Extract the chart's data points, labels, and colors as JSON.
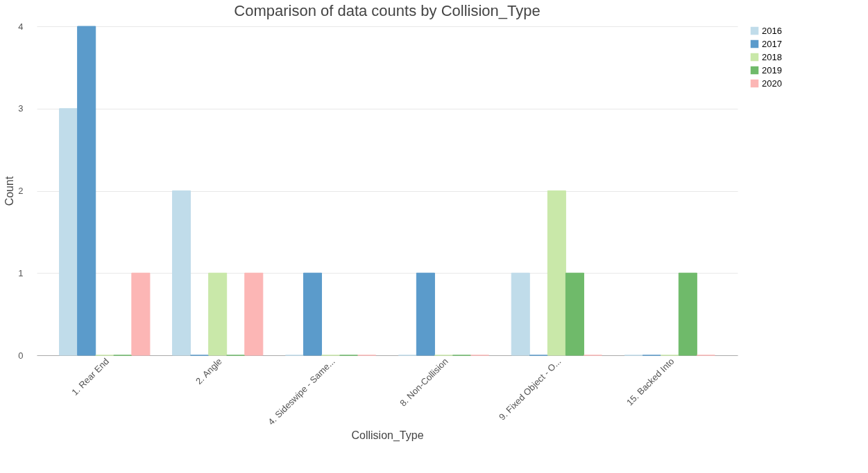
{
  "chart_data": {
    "type": "bar",
    "title": "Comparison of data counts by Collision_Type",
    "xlabel": "Collision_Type",
    "ylabel": "Count",
    "categories": [
      "1. Rear End",
      "2. Angle",
      "4. Sideswipe - Same...",
      "8. Non-Collision",
      "9. Fixed Object - O...",
      "15. Backed Into"
    ],
    "series": [
      {
        "name": "2016",
        "color": "#c0dcea",
        "values": [
          3,
          2,
          0,
          0,
          1,
          0
        ]
      },
      {
        "name": "2017",
        "color": "#5b9bcb",
        "values": [
          4,
          0,
          1,
          1,
          0,
          0
        ]
      },
      {
        "name": "2018",
        "color": "#c9e8a9",
        "values": [
          0,
          1,
          0,
          0,
          2,
          0
        ]
      },
      {
        "name": "2019",
        "color": "#6fba6a",
        "values": [
          0,
          0,
          0,
          0,
          1,
          1
        ]
      },
      {
        "name": "2020",
        "color": "#fcb6b5",
        "values": [
          1,
          1,
          0,
          0,
          0,
          0
        ]
      }
    ],
    "ylim": [
      0,
      4
    ],
    "yticks": [
      0,
      1,
      2,
      3,
      4
    ],
    "grid": "y",
    "legend": "right"
  }
}
